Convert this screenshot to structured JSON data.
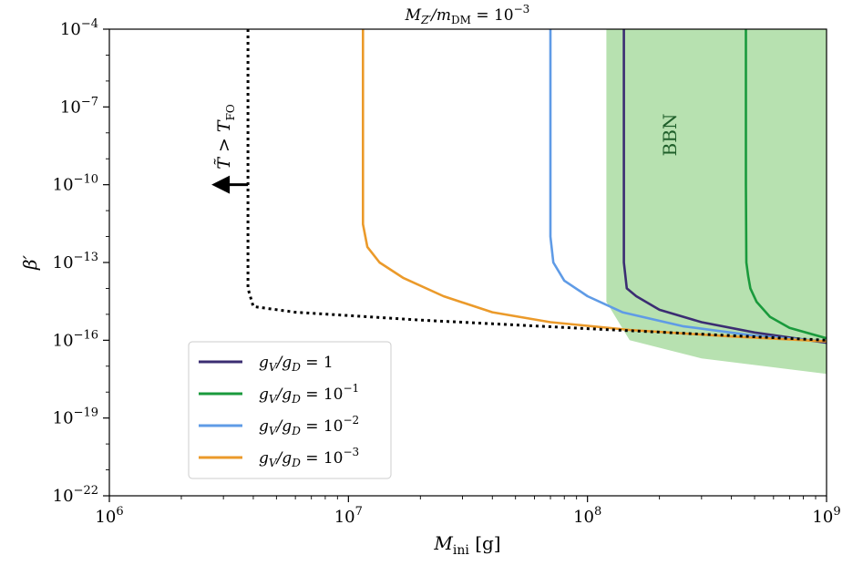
{
  "chart_data": {
    "type": "line",
    "title": "M_{Z'}/m_DM = 10^-3",
    "title_main": "M",
    "title_sub1": "Z′",
    "title_mid": "/m",
    "title_sub2": "DM",
    "title_eq": " = 10",
    "title_exp": "−3",
    "xlabel_main": "M",
    "xlabel_sub": "ini",
    "xlabel_unit": " [g]",
    "ylabel": "β′",
    "xscale": "log",
    "yscale": "log",
    "xlim": [
      1000000,
      1000000000
    ],
    "ylim": [
      1e-22,
      0.0001
    ],
    "x_ticks": [
      {
        "value": 1000000,
        "base": "10",
        "exp": "6"
      },
      {
        "value": 10000000,
        "base": "10",
        "exp": "7"
      },
      {
        "value": 100000000,
        "base": "10",
        "exp": "8"
      },
      {
        "value": 1000000000,
        "base": "10",
        "exp": "9"
      }
    ],
    "y_ticks": [
      {
        "value": 1e-22,
        "base": "10",
        "exp": "−22"
      },
      {
        "value": 1e-19,
        "base": "10",
        "exp": "−19"
      },
      {
        "value": 1e-16,
        "base": "10",
        "exp": "−16"
      },
      {
        "value": 1e-13,
        "base": "10",
        "exp": "−13"
      },
      {
        "value": 1e-10,
        "base": "10",
        "exp": "−10"
      },
      {
        "value": 1e-07,
        "base": "10",
        "exp": "−7"
      },
      {
        "value": 0.0001,
        "base": "10",
        "exp": "−4"
      }
    ],
    "region": {
      "label": "BBN",
      "color": "#b7e1b0",
      "label_color": "#1f5f2a",
      "boundary": [
        [
          120000000,
          0.0001
        ],
        [
          120000000,
          3e-15
        ],
        [
          150000000,
          1e-16
        ],
        [
          300000000,
          2e-17
        ],
        [
          1000000000,
          5e-18
        ],
        [
          1000000000,
          0.0001
        ]
      ]
    },
    "annotation": {
      "text_main": "T̃ > T",
      "text_sub": "FO",
      "arrow_at": [
        3800000,
        1e-10
      ],
      "arrow_direction": "left"
    },
    "series": [
      {
        "name": "g_V/g_D = 1",
        "legend_main": "g",
        "legend_s1": "V",
        "legend_mid": "/g",
        "legend_s2": "D",
        "legend_eq": " = 1",
        "legend_exp": "",
        "color": "#3b2d72",
        "style": "solid",
        "points": [
          [
            142000000,
            0.0001
          ],
          [
            142000000,
            1e-10
          ],
          [
            142000000,
            1e-13
          ],
          [
            146000000,
            1e-14
          ],
          [
            160000000,
            5e-15
          ],
          [
            200000000,
            1.5e-15
          ],
          [
            300000000,
            5e-16
          ],
          [
            500000000,
            2e-16
          ],
          [
            1000000000,
            8e-17
          ]
        ]
      },
      {
        "name": "g_V/g_D = 10^-1",
        "legend_main": "g",
        "legend_s1": "V",
        "legend_mid": "/g",
        "legend_s2": "D",
        "legend_eq": " = 10",
        "legend_exp": "−1",
        "color": "#1a9a3c",
        "style": "solid",
        "points": [
          [
            460000000,
            0.0001
          ],
          [
            460000000,
            1e-10
          ],
          [
            462000000,
            1e-13
          ],
          [
            470000000,
            3e-14
          ],
          [
            480000000,
            1e-14
          ],
          [
            510000000,
            3e-15
          ],
          [
            580000000,
            8e-16
          ],
          [
            700000000,
            3e-16
          ],
          [
            1000000000,
            1.2e-16
          ]
        ]
      },
      {
        "name": "g_V/g_D = 10^-2",
        "legend_main": "g",
        "legend_s1": "V",
        "legend_mid": "/g",
        "legend_s2": "D",
        "legend_eq": " = 10",
        "legend_exp": "−2",
        "color": "#5f9be6",
        "style": "solid",
        "points": [
          [
            70000000,
            0.0001
          ],
          [
            70000000,
            1e-10
          ],
          [
            70000000,
            1e-12
          ],
          [
            72000000,
            1e-13
          ],
          [
            80000000,
            2e-14
          ],
          [
            100000000,
            5e-15
          ],
          [
            140000000,
            1.2e-15
          ],
          [
            250000000,
            3.5e-16
          ],
          [
            500000000,
            1.5e-16
          ],
          [
            1000000000,
            9e-17
          ]
        ]
      },
      {
        "name": "g_V/g_D = 10^-3",
        "legend_main": "g",
        "legend_s1": "V",
        "legend_mid": "/g",
        "legend_s2": "D",
        "legend_eq": " = 10",
        "legend_exp": "−3",
        "color": "#eb9a2a",
        "style": "solid",
        "points": [
          [
            11500000,
            0.0001
          ],
          [
            11500000,
            1e-10
          ],
          [
            11500000,
            3e-12
          ],
          [
            12000000,
            4e-13
          ],
          [
            13500000,
            1e-13
          ],
          [
            17000000,
            2.5e-14
          ],
          [
            25000000,
            5e-15
          ],
          [
            40000000,
            1.2e-15
          ],
          [
            70000000,
            5e-16
          ],
          [
            150000000,
            2.5e-16
          ],
          [
            400000000,
            1.4e-16
          ],
          [
            1000000000,
            9e-17
          ]
        ]
      },
      {
        "name": "",
        "color": "#000000",
        "style": "dotted",
        "points": [
          [
            3800000,
            0.0001
          ],
          [
            3800000,
            1e-10
          ],
          [
            3800000,
            1e-14
          ],
          [
            4000000,
            2e-15
          ],
          [
            6000000,
            1.2e-15
          ],
          [
            20000000,
            6e-16
          ],
          [
            100000000,
            2.8e-16
          ],
          [
            1000000000,
            1e-16
          ]
        ]
      }
    ]
  }
}
